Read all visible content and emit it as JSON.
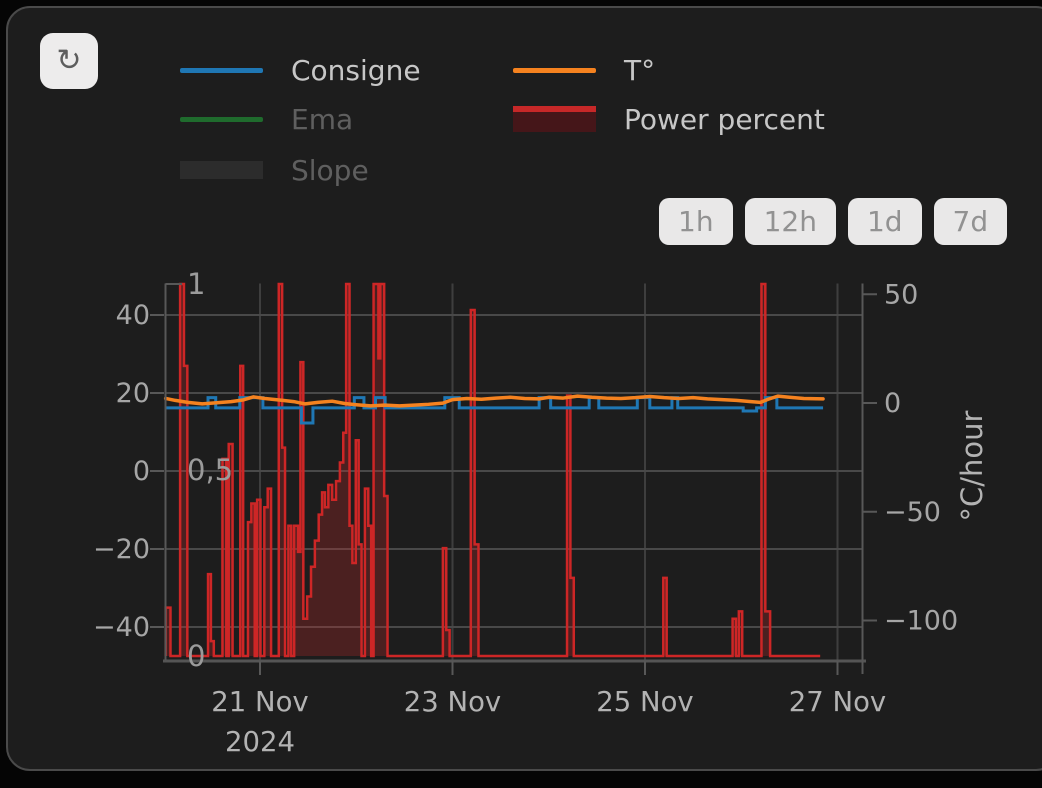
{
  "toolbar": {
    "refresh_icon": "↻"
  },
  "legend": {
    "items": [
      {
        "label": "Consigne",
        "color": "#1f77b4",
        "swatch": "line",
        "state": "active"
      },
      {
        "label": "Ema",
        "color": "#1f6b2d",
        "swatch": "line",
        "state": "dimmed"
      },
      {
        "label": "Slope",
        "color": "#2c2c2c",
        "swatch": "box",
        "state": "dimmed"
      },
      {
        "label": "T°",
        "color": "#f5821f",
        "swatch": "line",
        "state": "active"
      },
      {
        "label": "Power percent",
        "color": "#c62828",
        "swatch": "box-red-top",
        "state": "active"
      }
    ]
  },
  "range_buttons": [
    {
      "label": "1h"
    },
    {
      "label": "12h"
    },
    {
      "label": "1d"
    },
    {
      "label": "7d"
    }
  ],
  "chart_data": {
    "type": "line",
    "title": "",
    "grid": true,
    "legend_position": "top",
    "x_axis": {
      "unit": "date",
      "year_label": "2024",
      "range_days_nov_2024": [
        20.0,
        27.25
      ],
      "ticks": [
        {
          "day": 21,
          "label": "21 Nov"
        },
        {
          "day": 23,
          "label": "23 Nov"
        },
        {
          "day": 25,
          "label": "25 Nov"
        },
        {
          "day": 27,
          "label": "27 Nov"
        }
      ]
    },
    "y_axis_left": {
      "title": "",
      "range": [
        -48,
        48
      ],
      "ticks": [
        {
          "v": 40,
          "label": "40"
        },
        {
          "v": 20,
          "label": "20"
        },
        {
          "v": 0,
          "label": "0"
        },
        {
          "v": -20,
          "label": "−20"
        },
        {
          "v": -40,
          "label": "−40"
        }
      ]
    },
    "y_axis_inner": {
      "title": "",
      "range": [
        0,
        1
      ],
      "ticks": [
        {
          "v": 1,
          "label": "1"
        },
        {
          "v": 0.5,
          "label": "0,5"
        },
        {
          "v": 0,
          "label": "0"
        }
      ]
    },
    "y_axis_right": {
      "title": "°C/hour",
      "range": [
        -118,
        55
      ],
      "ticks": [
        {
          "v": 50,
          "label": "50"
        },
        {
          "v": 0,
          "label": "0"
        },
        {
          "v": -50,
          "label": "−50"
        },
        {
          "v": -100,
          "label": "−100"
        }
      ]
    },
    "series": [
      {
        "name": "Consigne",
        "type": "step-line",
        "axis": "left",
        "color": "#1f77b4",
        "visible": true,
        "points": [
          [
            20.02,
            16.2
          ],
          [
            20.46,
            18.8
          ],
          [
            20.54,
            16.2
          ],
          [
            20.79,
            18.8
          ],
          [
            21.03,
            16.2
          ],
          [
            21.43,
            12.3
          ],
          [
            21.55,
            16.2
          ],
          [
            21.98,
            18.8
          ],
          [
            22.08,
            16.2
          ],
          [
            22.2,
            18.8
          ],
          [
            22.3,
            16.2
          ],
          [
            22.92,
            18.8
          ],
          [
            23.07,
            16.2
          ],
          [
            23.9,
            18.8
          ],
          [
            24.02,
            16.2
          ],
          [
            24.42,
            18.8
          ],
          [
            24.52,
            16.2
          ],
          [
            24.92,
            18.8
          ],
          [
            25.05,
            16.2
          ],
          [
            25.28,
            18.8
          ],
          [
            25.34,
            16.2
          ],
          [
            26.02,
            15.4
          ],
          [
            26.16,
            16.2
          ],
          [
            26.25,
            18.8
          ],
          [
            26.37,
            16.2
          ],
          [
            26.85,
            16.2
          ]
        ]
      },
      {
        "name": "T°",
        "type": "line",
        "axis": "left",
        "color": "#f5821f",
        "visible": true,
        "points": [
          [
            20.02,
            18.6
          ],
          [
            20.12,
            18.1
          ],
          [
            20.25,
            17.6
          ],
          [
            20.4,
            17.2
          ],
          [
            20.55,
            17.5
          ],
          [
            20.7,
            17.8
          ],
          [
            20.82,
            18.2
          ],
          [
            20.93,
            19.0
          ],
          [
            21.05,
            18.6
          ],
          [
            21.2,
            18.2
          ],
          [
            21.35,
            17.8
          ],
          [
            21.47,
            17.2
          ],
          [
            21.6,
            17.6
          ],
          [
            21.75,
            17.9
          ],
          [
            21.88,
            17.3
          ],
          [
            22.0,
            17.0
          ],
          [
            22.15,
            16.7
          ],
          [
            22.3,
            16.9
          ],
          [
            22.45,
            16.7
          ],
          [
            22.6,
            16.9
          ],
          [
            22.75,
            17.1
          ],
          [
            22.9,
            17.4
          ],
          [
            23.0,
            18.3
          ],
          [
            23.15,
            18.6
          ],
          [
            23.3,
            18.4
          ],
          [
            23.45,
            18.7
          ],
          [
            23.6,
            18.9
          ],
          [
            23.75,
            18.6
          ],
          [
            23.9,
            18.5
          ],
          [
            24.0,
            18.9
          ],
          [
            24.15,
            18.7
          ],
          [
            24.3,
            19.2
          ],
          [
            24.45,
            18.9
          ],
          [
            24.6,
            18.7
          ],
          [
            24.75,
            18.6
          ],
          [
            24.9,
            18.8
          ],
          [
            25.05,
            19.1
          ],
          [
            25.2,
            18.8
          ],
          [
            25.35,
            18.6
          ],
          [
            25.5,
            18.8
          ],
          [
            25.65,
            18.5
          ],
          [
            25.8,
            18.3
          ],
          [
            25.95,
            18.1
          ],
          [
            26.1,
            17.8
          ],
          [
            26.2,
            17.6
          ],
          [
            26.28,
            18.4
          ],
          [
            26.38,
            19.2
          ],
          [
            26.5,
            18.9
          ],
          [
            26.65,
            18.6
          ],
          [
            26.85,
            18.5
          ]
        ]
      },
      {
        "name": "Ema",
        "type": "line",
        "axis": "left",
        "color": "#1f6b2d",
        "visible": false,
        "points": []
      },
      {
        "name": "Slope",
        "type": "area",
        "axis": "right",
        "color": "#2c2c2c",
        "visible": false,
        "points": []
      },
      {
        "name": "Power percent",
        "type": "step-area",
        "axis": "inner",
        "color": "#c62828",
        "fill_color": "rgba(198,40,40,0.27)",
        "visible": true,
        "points": [
          [
            20.02,
            0.13
          ],
          [
            20.07,
            0
          ],
          [
            20.17,
            1.0
          ],
          [
            20.21,
            0.78
          ],
          [
            20.245,
            0
          ],
          [
            20.46,
            0.22
          ],
          [
            20.49,
            0.04
          ],
          [
            20.52,
            0
          ],
          [
            20.61,
            0.53
          ],
          [
            20.65,
            0
          ],
          [
            20.675,
            0.57
          ],
          [
            20.715,
            0
          ],
          [
            20.795,
            0.78
          ],
          [
            20.825,
            0
          ],
          [
            20.875,
            0.36
          ],
          [
            20.91,
            0.41
          ],
          [
            20.945,
            0
          ],
          [
            20.97,
            0.42
          ],
          [
            21.005,
            0
          ],
          [
            21.045,
            0.4
          ],
          [
            21.08,
            0.45
          ],
          [
            21.115,
            0
          ],
          [
            21.195,
            1.0
          ],
          [
            21.23,
            0.56
          ],
          [
            21.26,
            0
          ],
          [
            21.295,
            0.35
          ],
          [
            21.325,
            0
          ],
          [
            21.355,
            0.35
          ],
          [
            21.395,
            0.28
          ],
          [
            21.42,
            0.79
          ],
          [
            21.45,
            0.1
          ],
          [
            21.49,
            0.16
          ],
          [
            21.53,
            0.24
          ],
          [
            21.57,
            0.31
          ],
          [
            21.61,
            0.38
          ],
          [
            21.645,
            0.44
          ],
          [
            21.675,
            0.4
          ],
          [
            21.71,
            0.46
          ],
          [
            21.75,
            0.42
          ],
          [
            21.79,
            0.47
          ],
          [
            21.83,
            0.52
          ],
          [
            21.865,
            0.6
          ],
          [
            21.895,
            1.0
          ],
          [
            21.93,
            0.35
          ],
          [
            21.96,
            0.25
          ],
          [
            21.995,
            0.58
          ],
          [
            22.025,
            0.3
          ],
          [
            22.055,
            0
          ],
          [
            22.09,
            0.45
          ],
          [
            22.125,
            0.35
          ],
          [
            22.155,
            0
          ],
          [
            22.18,
            1.0
          ],
          [
            22.23,
            0.8
          ],
          [
            22.25,
            1.0
          ],
          [
            22.29,
            0.43
          ],
          [
            22.325,
            0
          ],
          [
            22.9,
            0.29
          ],
          [
            22.935,
            0.07
          ],
          [
            22.97,
            0
          ],
          [
            23.19,
            0.93
          ],
          [
            23.23,
            0.3
          ],
          [
            23.27,
            0
          ],
          [
            24.19,
            0.7
          ],
          [
            24.225,
            0.21
          ],
          [
            24.26,
            0
          ],
          [
            25.19,
            0.21
          ],
          [
            25.225,
            0
          ],
          [
            25.91,
            0.1
          ],
          [
            25.945,
            0
          ],
          [
            25.975,
            0.12
          ],
          [
            26.01,
            0
          ],
          [
            26.21,
            1.0
          ],
          [
            26.25,
            0.12
          ],
          [
            26.3,
            0
          ],
          [
            26.82,
            0
          ]
        ]
      }
    ]
  }
}
